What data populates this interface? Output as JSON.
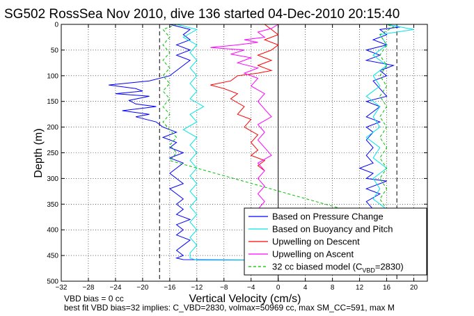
{
  "chart_data": {
    "type": "line",
    "title": "SG502 RossSea Nov 2010, dive 136 started 04-Dec-2010 20:15:40",
    "xlabel": "Vertical Velocity (cm/s)",
    "ylabel": "Depth (m)",
    "xlim": [
      -32,
      22
    ],
    "ylim": [
      0,
      500
    ],
    "y_reversed": true,
    "xticks": [
      -32,
      -28,
      -24,
      -20,
      -16,
      -12,
      -8,
      -4,
      0,
      4,
      8,
      12,
      16,
      20
    ],
    "yticks": [
      0,
      50,
      100,
      150,
      200,
      250,
      300,
      350,
      400,
      450,
      500
    ],
    "grid": true,
    "legend_position": "bottom-right",
    "reference_lines": [
      {
        "x": -17.5,
        "style": "dashed"
      },
      {
        "x": 0,
        "style": "solid"
      },
      {
        "x": 17.5,
        "style": "dashed"
      }
    ],
    "series": [
      {
        "name": "Based on Pressure Change",
        "color": "#0000ff",
        "style": "solid",
        "points": [
          [
            -16,
            0
          ],
          [
            -13,
            10
          ],
          [
            -14,
            20
          ],
          [
            -13,
            30
          ],
          [
            -15,
            40
          ],
          [
            -13,
            50
          ],
          [
            -15,
            60
          ],
          [
            -13,
            70
          ],
          [
            -14,
            80
          ],
          [
            -15,
            90
          ],
          [
            -16,
            100
          ],
          [
            -19,
            110
          ],
          [
            -25,
            118
          ],
          [
            -21,
            125
          ],
          [
            -20,
            130
          ],
          [
            -24,
            135
          ],
          [
            -19,
            140
          ],
          [
            -22,
            148
          ],
          [
            -21,
            155
          ],
          [
            -18,
            160
          ],
          [
            -23,
            168
          ],
          [
            -19,
            175
          ],
          [
            -21,
            180
          ],
          [
            -18,
            190
          ],
          [
            -17,
            200
          ],
          [
            -15,
            210
          ],
          [
            -17,
            220
          ],
          [
            -15,
            230
          ],
          [
            -16,
            240
          ],
          [
            -14,
            250
          ],
          [
            -16,
            260
          ],
          [
            -14,
            270
          ],
          [
            -15,
            280
          ],
          [
            -16,
            290
          ],
          [
            -15,
            300
          ],
          [
            -14,
            310
          ],
          [
            -16,
            320
          ],
          [
            -15,
            330
          ],
          [
            -14,
            340
          ],
          [
            -15,
            350
          ],
          [
            -14,
            360
          ],
          [
            -15,
            370
          ],
          [
            -13,
            380
          ],
          [
            -15,
            390
          ],
          [
            -14,
            400
          ],
          [
            -15,
            410
          ],
          [
            -13,
            420
          ],
          [
            -14,
            430
          ],
          [
            -15,
            440
          ],
          [
            -14,
            450
          ],
          [
            -15,
            455
          ],
          [
            -14,
            458
          ],
          [
            0,
            459
          ],
          [
            12,
            458
          ],
          [
            13,
            440
          ],
          [
            12,
            420
          ],
          [
            13,
            400
          ],
          [
            12,
            380
          ],
          [
            14,
            360
          ],
          [
            13,
            345
          ],
          [
            15,
            330
          ],
          [
            13,
            320
          ],
          [
            16,
            305
          ],
          [
            13,
            300
          ],
          [
            14,
            290
          ],
          [
            12,
            280
          ],
          [
            14,
            270
          ],
          [
            13,
            255
          ],
          [
            14,
            240
          ],
          [
            13,
            225
          ],
          [
            14,
            210
          ],
          [
            13,
            200
          ],
          [
            15,
            190
          ],
          [
            13,
            180
          ],
          [
            14,
            170
          ],
          [
            15,
            160
          ],
          [
            13,
            150
          ],
          [
            16,
            140
          ],
          [
            15,
            125
          ],
          [
            14,
            110
          ],
          [
            16,
            100
          ],
          [
            15,
            90
          ],
          [
            17,
            80
          ],
          [
            13,
            70
          ],
          [
            15,
            60
          ],
          [
            13,
            50
          ],
          [
            16,
            40
          ],
          [
            14,
            30
          ],
          [
            16,
            20
          ],
          [
            15,
            10
          ],
          [
            18,
            5
          ],
          [
            16,
            0
          ]
        ]
      },
      {
        "name": "Based on Buoyancy and Pitch",
        "color": "#00e5e5",
        "style": "solid",
        "points": [
          [
            -15,
            0
          ],
          [
            -12,
            10
          ],
          [
            -14,
            25
          ],
          [
            -12,
            40
          ],
          [
            -13,
            55
          ],
          [
            -12,
            70
          ],
          [
            -13,
            85
          ],
          [
            -12,
            100
          ],
          [
            -13,
            115
          ],
          [
            -12,
            130
          ],
          [
            -13,
            145
          ],
          [
            -11,
            160
          ],
          [
            -13,
            175
          ],
          [
            -12,
            190
          ],
          [
            -14,
            205
          ],
          [
            -12,
            220
          ],
          [
            -13,
            235
          ],
          [
            -12,
            250
          ],
          [
            -13,
            265
          ],
          [
            -12,
            280
          ],
          [
            -13,
            295
          ],
          [
            -12,
            310
          ],
          [
            -13,
            325
          ],
          [
            -12,
            340
          ],
          [
            -13,
            355
          ],
          [
            -12,
            370
          ],
          [
            -13,
            385
          ],
          [
            -12,
            400
          ],
          [
            -13,
            415
          ],
          [
            -12,
            430
          ],
          [
            -13,
            445
          ],
          [
            -13,
            455
          ],
          [
            -12,
            459
          ],
          [
            -3,
            459
          ],
          [
            12,
            458
          ],
          [
            14,
            440
          ],
          [
            13,
            420
          ],
          [
            15,
            400
          ],
          [
            14,
            380
          ],
          [
            16,
            360
          ],
          [
            14,
            340
          ],
          [
            15,
            320
          ],
          [
            14,
            300
          ],
          [
            16,
            280
          ],
          [
            14,
            260
          ],
          [
            15,
            240
          ],
          [
            13,
            220
          ],
          [
            15,
            200
          ],
          [
            14,
            180
          ],
          [
            15,
            160
          ],
          [
            13,
            140
          ],
          [
            15,
            120
          ],
          [
            14,
            100
          ],
          [
            16,
            80
          ],
          [
            14,
            60
          ],
          [
            16,
            40
          ],
          [
            15,
            20
          ],
          [
            20,
            10
          ],
          [
            16,
            0
          ]
        ]
      },
      {
        "name": "Upwelling on Descent",
        "color": "#ff0000",
        "style": "solid",
        "points": [
          [
            -2,
            0
          ],
          [
            -1,
            10
          ],
          [
            0,
            20
          ],
          [
            -2,
            30
          ],
          [
            0,
            40
          ],
          [
            -1,
            50
          ],
          [
            -3,
            60
          ],
          [
            -1,
            70
          ],
          [
            -3,
            80
          ],
          [
            -1,
            90
          ],
          [
            -3,
            95
          ],
          [
            -6,
            100
          ],
          [
            -7,
            110
          ],
          [
            -10,
            118
          ],
          [
            -8,
            125
          ],
          [
            -6,
            135
          ],
          [
            -7,
            145
          ],
          [
            -5,
            160
          ],
          [
            -6,
            175
          ],
          [
            -4,
            185
          ],
          [
            -5,
            200
          ],
          [
            -3,
            215
          ],
          [
            -4,
            230
          ],
          [
            -3,
            245
          ],
          [
            -4,
            255
          ],
          [
            -2,
            265
          ],
          [
            -3,
            275
          ],
          [
            -2,
            285
          ]
        ]
      },
      {
        "name": "Upwelling on Ascent",
        "color": "#ff00ff",
        "style": "solid",
        "points": [
          [
            -3,
            360
          ],
          [
            -2,
            345
          ],
          [
            -3,
            330
          ],
          [
            -2,
            315
          ],
          [
            -3,
            300
          ],
          [
            -2,
            285
          ],
          [
            -3,
            270
          ],
          [
            -1,
            255
          ],
          [
            -2,
            240
          ],
          [
            -3,
            225
          ],
          [
            -2,
            210
          ],
          [
            -3,
            195
          ],
          [
            -1,
            180
          ],
          [
            -2,
            165
          ],
          [
            -3,
            150
          ],
          [
            -2,
            135
          ],
          [
            -4,
            120
          ],
          [
            -3,
            105
          ],
          [
            -5,
            95
          ],
          [
            -3,
            85
          ],
          [
            -6,
            75
          ],
          [
            -4,
            65
          ],
          [
            -7,
            58
          ],
          [
            -5,
            50
          ],
          [
            -10,
            45
          ],
          [
            -6,
            40
          ],
          [
            -3,
            35
          ],
          [
            -5,
            30
          ],
          [
            -2,
            25
          ],
          [
            -3,
            15
          ],
          [
            -1,
            8
          ],
          [
            0,
            0
          ]
        ]
      },
      {
        "name": "32 cc biased model (C_VBD=2830)",
        "color": "#00c000",
        "style": "dashed",
        "points": [
          [
            -15,
            0
          ],
          [
            -17,
            10
          ],
          [
            -16,
            25
          ],
          [
            -17,
            40
          ],
          [
            -16,
            55
          ],
          [
            -17,
            70
          ],
          [
            -16,
            85
          ],
          [
            -17,
            100
          ],
          [
            -16,
            115
          ],
          [
            -17,
            130
          ],
          [
            -16,
            145
          ],
          [
            -17,
            160
          ],
          [
            -16,
            175
          ],
          [
            -17,
            190
          ],
          [
            -16,
            205
          ],
          [
            -15,
            220
          ],
          [
            -16,
            235
          ],
          [
            -15,
            250
          ],
          [
            -16,
            265
          ],
          [
            15,
            380
          ],
          [
            16,
            360
          ],
          [
            15,
            340
          ],
          [
            16,
            320
          ],
          [
            15,
            300
          ],
          [
            16,
            280
          ],
          [
            15,
            260
          ],
          [
            16,
            240
          ],
          [
            15,
            220
          ],
          [
            16,
            200
          ],
          [
            15,
            180
          ],
          [
            16,
            160
          ],
          [
            15,
            140
          ],
          [
            16,
            120
          ],
          [
            15,
            100
          ],
          [
            16,
            80
          ],
          [
            15,
            60
          ],
          [
            16,
            40
          ],
          [
            15,
            20
          ],
          [
            17,
            5
          ],
          [
            16,
            0
          ]
        ]
      }
    ],
    "legend_entries": [
      "Based on Pressure Change",
      "Based on Buoyancy and Pitch",
      "Upwelling on Descent",
      "Upwelling on Ascent",
      "32 cc biased model (C"
    ],
    "legend_subscript": "VBD",
    "legend_suffix": "=2830)",
    "footer": [
      "VBD bias = 0 cc",
      "best fit VBD bias=32 implies: C_VBD=2830, volmax=50969 cc, max SM_CC=591, max M"
    ]
  }
}
